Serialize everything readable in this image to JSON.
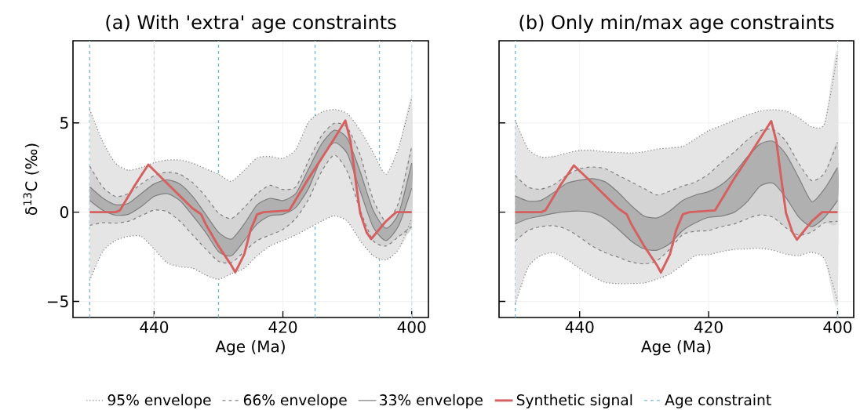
{
  "chart_data": [
    {
      "type": "line",
      "title": "(a) With 'extra' age constraints",
      "xlabel": "Age (Ma)",
      "ylabel": "δ$^{13}$C (‰)",
      "xlim": [
        452.6,
        397.4
      ],
      "ylim": [
        -5.9,
        9.6
      ],
      "xticks": [
        440,
        420,
        400
      ],
      "yticks": [
        {
          "value": -5,
          "label": "−5"
        },
        0,
        5
      ],
      "grid": true,
      "legend": "bottom",
      "x": [
        450,
        448,
        446,
        444,
        442,
        440,
        438,
        436,
        434,
        432,
        430,
        428,
        426,
        424,
        422,
        420,
        418,
        416,
        414,
        412,
        410,
        408,
        406,
        404,
        402,
        400
      ],
      "series": [
        {
          "name": "95% envelope",
          "color": "#7f7f7f",
          "line_style": "dotted",
          "values": [
            5.75,
            3.97,
            2.74,
            2.35,
            2.5,
            2.77,
            2.92,
            2.92,
            2.74,
            2.43,
            2.12,
            1.73,
            2.35,
            3.04,
            3.12,
            3.01,
            3.51,
            5.05,
            5.6,
            5.75,
            5.52,
            4.59,
            3.35,
            2.12,
            3.66,
            6.37
          ],
          "lower": [
            -3.83,
            -2.21,
            -1.59,
            -1.36,
            -1.36,
            -2.06,
            -2.83,
            -3.06,
            -3.14,
            -3.52,
            -3.76,
            -3.45,
            -3.14,
            -2.44,
            -1.9,
            -1.59,
            -1.28,
            -0.9,
            -0.51,
            -0.2,
            -0.51,
            -1.59,
            -2.44,
            -2.67,
            -2.06,
            -0.36
          ],
          "upper": [
            5.75,
            3.97,
            2.74,
            2.35,
            2.5,
            2.77,
            2.92,
            2.92,
            2.74,
            2.43,
            2.12,
            1.73,
            2.35,
            3.04,
            3.12,
            3.01,
            3.51,
            5.05,
            5.6,
            5.75,
            5.52,
            4.59,
            3.35,
            2.12,
            3.66,
            6.37
          ]
        },
        {
          "color": "#7f7f7f",
          "line_style": "dotted",
          "values": [
            -3.83,
            -2.21,
            -1.59,
            -1.36,
            -1.36,
            -2.06,
            -2.83,
            -3.06,
            -3.14,
            -3.52,
            -3.76,
            -3.45,
            -3.14,
            -2.44,
            -1.9,
            -1.59,
            -1.28,
            -0.9,
            -0.51,
            -0.2,
            -0.51,
            -1.59,
            -2.44,
            -2.67,
            -2.06,
            -0.36
          ]
        },
        {
          "name": "66% envelope",
          "color": "#7f7f7f",
          "line_style": "dashed",
          "values": [
            2.58,
            1.42,
            0.88,
            1.04,
            1.58,
            2.04,
            2.24,
            2.12,
            1.65,
            0.88,
            -0.05,
            -0.36,
            0.26,
            1.04,
            1.5,
            1.27,
            1.42,
            2.89,
            4.28,
            4.98,
            4.74,
            3.2,
            0.73,
            -0.51,
            0.57,
            3.66
          ],
          "lower": [
            -0.74,
            -0.59,
            -0.62,
            -0.51,
            -0.2,
            0.11,
            0.03,
            -0.51,
            -1.28,
            -2.06,
            -2.75,
            -2.83,
            -2.21,
            -1.59,
            -1.28,
            -0.97,
            -0.36,
            0.73,
            2.27,
            3.2,
            2.27,
            0.11,
            -1.59,
            -1.9,
            -1.36,
            -0.82
          ],
          "upper": [
            2.58,
            1.42,
            0.88,
            1.04,
            1.58,
            2.04,
            2.24,
            2.12,
            1.65,
            0.88,
            -0.05,
            -0.36,
            0.26,
            1.04,
            1.5,
            1.27,
            1.42,
            2.89,
            4.28,
            4.98,
            4.74,
            3.2,
            0.73,
            -0.51,
            0.57,
            3.66
          ]
        },
        {
          "color": "#7f7f7f",
          "line_style": "dashed",
          "values": [
            -0.74,
            -0.59,
            -0.62,
            -0.51,
            -0.2,
            0.11,
            0.03,
            -0.51,
            -1.28,
            -2.06,
            -2.75,
            -2.83,
            -2.21,
            -1.59,
            -1.28,
            -0.97,
            -0.36,
            0.73,
            2.27,
            3.2,
            2.27,
            0.11,
            -1.59,
            -1.9,
            -1.36,
            -0.82
          ]
        },
        {
          "name": "33% envelope",
          "color": "#7f7f7f",
          "line_style": "solid",
          "values": [
            1.42,
            0.8,
            0.42,
            0.49,
            1.04,
            1.58,
            1.81,
            1.58,
            0.88,
            -0.12,
            -1.13,
            -1.51,
            -0.66,
            0.42,
            0.77,
            0.65,
            1.04,
            2.43,
            3.82,
            4.59,
            4.13,
            2.27,
            0.11,
            -0.9,
            -0.05,
            2.74
          ],
          "lower": [
            0.65,
            0.11,
            -0.17,
            -0.12,
            0.31,
            0.88,
            1.04,
            0.65,
            -0.2,
            -1.13,
            -2.21,
            -2.44,
            -1.59,
            -0.66,
            -0.2,
            -0.12,
            0.26,
            1.34,
            3.04,
            3.89,
            3.28,
            1.19,
            -0.82,
            -1.59,
            -0.74,
            1.34
          ],
          "upper": [
            1.42,
            0.8,
            0.42,
            0.49,
            1.04,
            1.58,
            1.81,
            1.58,
            0.88,
            -0.12,
            -1.13,
            -1.51,
            -0.66,
            0.42,
            0.77,
            0.65,
            1.04,
            2.43,
            3.82,
            4.59,
            4.13,
            2.27,
            0.11,
            -0.9,
            -0.05,
            2.74
          ]
        },
        {
          "color": "#7f7f7f",
          "line_style": "solid",
          "values": [
            0.65,
            0.11,
            -0.17,
            -0.12,
            0.31,
            0.88,
            1.04,
            0.65,
            -0.2,
            -1.13,
            -2.21,
            -2.44,
            -1.59,
            -0.66,
            -0.2,
            -0.12,
            0.26,
            1.34,
            3.04,
            3.89,
            3.28,
            1.19,
            -0.82,
            -1.59,
            -0.74,
            1.34
          ]
        },
        {
          "name": "Synthetic signal",
          "color": "#d65f5f",
          "line_style": "solid",
          "x": [
            450,
            446,
            445.3,
            443,
            440.9,
            438,
            434,
            432.7,
            432,
            430,
            428,
            427.4,
            426,
            425,
            424,
            423,
            419,
            416,
            414,
            412,
            410.3,
            409.5,
            408.6,
            408,
            407,
            406.3,
            404,
            402.4,
            400
          ],
          "values": [
            0,
            0,
            0.1,
            1.5,
            2.66,
            1.62,
            0.2,
            -0.12,
            -0.66,
            -1.9,
            -2.98,
            -3.37,
            -2.36,
            -0.97,
            -0.12,
            0,
            0.1,
            1.9,
            3.0,
            4.13,
            5.13,
            3.97,
            1.5,
            -0.05,
            -1.13,
            -1.51,
            -0.51,
            0,
            0
          ]
        }
      ],
      "ref_lines": [
        {
          "axis": "x",
          "value": 450,
          "label": "Age constraint",
          "color": "#7ab8d4",
          "line_style": "dashed"
        },
        {
          "axis": "x",
          "value": 440,
          "color": "#cfd8dc",
          "line_style": "dashed"
        },
        {
          "axis": "x",
          "value": 430,
          "color": "#7ab8d4",
          "line_style": "dashed"
        },
        {
          "axis": "x",
          "value": 415,
          "color": "#7ab8d4",
          "line_style": "dashed"
        },
        {
          "axis": "x",
          "value": 405,
          "color": "#7ab8d4",
          "line_style": "dashed"
        },
        {
          "axis": "x",
          "value": 400,
          "color": "#c6dfe9",
          "line_style": "dashed"
        }
      ]
    },
    {
      "type": "line",
      "title": "(b) Only min/max age constraints",
      "xlabel": "Age (Ma)",
      "xlim": [
        452.5,
        397.5
      ],
      "ylim": [
        -5.9,
        9.6
      ],
      "xticks": [
        440,
        420,
        400
      ],
      "yticks": [
        -5,
        0,
        5
      ],
      "grid": true,
      "tick_labels": "x",
      "x": [
        450,
        448,
        446,
        444,
        442,
        440,
        438,
        436,
        434,
        432,
        430,
        428,
        426,
        424,
        422,
        420,
        418,
        416,
        414,
        412,
        410,
        408,
        406,
        404,
        402,
        400
      ],
      "series": [
        {
          "color": "#7f7f7f",
          "line_style": "dotted",
          "values": [
            5.15,
            3.53,
            3.09,
            3.12,
            3.31,
            3.46,
            3.46,
            3.38,
            3.34,
            3.31,
            3.38,
            3.53,
            3.6,
            3.68,
            4.12,
            4.56,
            4.85,
            5.15,
            5.44,
            5.66,
            5.74,
            5.66,
            5.29,
            4.78,
            5.0,
            8.9
          ],
          "lower": [
            -5.15,
            -3.09,
            -2.43,
            -2.28,
            -2.65,
            -3.16,
            -3.6,
            -3.94,
            -4.0,
            -4.0,
            -3.97,
            -3.75,
            -3.46,
            -2.94,
            -2.43,
            -2.38,
            -2.21,
            -2.09,
            -2.06,
            -2.03,
            -2.13,
            -2.35,
            -2.43,
            -2.25,
            -2.65,
            -5.0
          ],
          "upper": [
            5.15,
            3.53,
            3.09,
            3.12,
            3.31,
            3.46,
            3.46,
            3.38,
            3.34,
            3.31,
            3.38,
            3.53,
            3.6,
            3.68,
            4.12,
            4.56,
            4.85,
            5.15,
            5.44,
            5.66,
            5.74,
            5.66,
            5.29,
            4.78,
            5.0,
            8.9
          ]
        },
        {
          "color": "#7f7f7f",
          "line_style": "dotted",
          "values": [
            -5.15,
            -3.09,
            -2.43,
            -2.28,
            -2.65,
            -3.16,
            -3.6,
            -3.94,
            -4.0,
            -4.0,
            -3.97,
            -3.75,
            -3.46,
            -2.94,
            -2.43,
            -2.38,
            -2.21,
            -2.09,
            -2.06,
            -2.03,
            -2.13,
            -2.35,
            -2.43,
            -2.25,
            -2.65,
            -5.0
          ]
        },
        {
          "color": "#7f7f7f",
          "line_style": "dashed",
          "values": [
            2.06,
            1.4,
            1.29,
            1.54,
            2.06,
            2.43,
            2.53,
            2.43,
            2.06,
            1.69,
            1.32,
            0.96,
            1.18,
            1.47,
            1.69,
            2.13,
            2.79,
            3.38,
            4.04,
            4.56,
            4.63,
            3.97,
            2.72,
            1.76,
            2.21,
            3.9
          ],
          "lower": [
            -1.62,
            -1.03,
            -0.81,
            -0.76,
            -0.96,
            -1.4,
            -1.91,
            -2.28,
            -2.53,
            -2.79,
            -2.9,
            -2.72,
            -2.06,
            -1.25,
            -1.07,
            -1.03,
            -0.81,
            -0.66,
            -0.37,
            -0.15,
            -0.29,
            -0.88,
            -1.29,
            -1.1,
            -0.59,
            -0.51
          ],
          "upper": [
            2.06,
            1.4,
            1.29,
            1.54,
            2.06,
            2.43,
            2.53,
            2.43,
            2.06,
            1.69,
            1.32,
            0.96,
            1.18,
            1.47,
            1.69,
            2.13,
            2.79,
            3.38,
            4.04,
            4.56,
            4.63,
            3.97,
            2.72,
            1.76,
            2.21,
            3.9
          ]
        },
        {
          "color": "#7f7f7f",
          "line_style": "dashed",
          "values": [
            -1.62,
            -1.03,
            -0.81,
            -0.76,
            -0.96,
            -1.4,
            -1.91,
            -2.28,
            -2.53,
            -2.79,
            -2.9,
            -2.72,
            -2.06,
            -1.25,
            -1.07,
            -1.03,
            -0.81,
            -0.66,
            -0.37,
            -0.15,
            -0.29,
            -0.88,
            -1.29,
            -1.1,
            -0.59,
            -0.51
          ]
        },
        {
          "color": "#7f7f7f",
          "line_style": "solid",
          "values": [
            0.91,
            0.62,
            0.66,
            1.1,
            1.62,
            1.79,
            1.88,
            1.69,
            1.1,
            0.37,
            -0.22,
            -0.32,
            0.07,
            0.66,
            0.96,
            1.15,
            1.54,
            2.21,
            3.09,
            3.82,
            3.97,
            3.24,
            1.91,
            0.59,
            1.32,
            2.5
          ],
          "lower": [
            -0.66,
            -0.37,
            -0.22,
            -0.07,
            0.03,
            0.06,
            -0.03,
            -0.37,
            -0.96,
            -1.62,
            -2.06,
            -2.13,
            -1.76,
            -1.03,
            -0.59,
            -0.29,
            -0.22,
            0.0,
            0.59,
            1.47,
            1.62,
            0.81,
            -0.29,
            -0.81,
            -0.29,
            0.66
          ],
          "upper": [
            0.91,
            0.62,
            0.66,
            1.1,
            1.62,
            1.79,
            1.88,
            1.69,
            1.1,
            0.37,
            -0.22,
            -0.32,
            0.07,
            0.66,
            0.96,
            1.15,
            1.54,
            2.21,
            3.09,
            3.82,
            3.97,
            3.24,
            1.91,
            0.59,
            1.32,
            2.5
          ]
        },
        {
          "color": "#7f7f7f",
          "line_style": "solid",
          "values": [
            -0.66,
            -0.37,
            -0.22,
            -0.07,
            0.03,
            0.06,
            -0.03,
            -0.37,
            -0.96,
            -1.62,
            -2.06,
            -2.13,
            -1.76,
            -1.03,
            -0.59,
            -0.29,
            -0.22,
            0.0,
            0.59,
            1.47,
            1.62,
            0.81,
            -0.29,
            -0.81,
            -0.29,
            0.66
          ]
        },
        {
          "color": "#d65f5f",
          "line_style": "solid",
          "x": [
            450,
            446,
            445.3,
            443,
            440.9,
            438,
            434,
            432.7,
            432,
            430,
            428,
            427.4,
            426,
            425,
            424,
            423,
            419,
            416,
            414,
            412,
            410.3,
            409.5,
            408.6,
            408,
            407,
            406.3,
            404,
            402.4,
            400
          ],
          "values": [
            0,
            0,
            0.1,
            1.5,
            2.62,
            1.62,
            0.2,
            -0.12,
            -0.66,
            -1.9,
            -2.98,
            -3.38,
            -2.36,
            -0.97,
            -0.12,
            0,
            0.1,
            1.9,
            3.0,
            4.13,
            5.1,
            3.97,
            1.5,
            -0.05,
            -1.13,
            -1.54,
            -0.51,
            0,
            0
          ]
        }
      ],
      "ref_lines": [
        {
          "axis": "x",
          "value": 450,
          "color": "#7ab8d4",
          "line_style": "dashed"
        },
        {
          "axis": "x",
          "value": 400,
          "color": "#c6dfe9",
          "line_style": "dashed"
        }
      ]
    }
  ]
}
